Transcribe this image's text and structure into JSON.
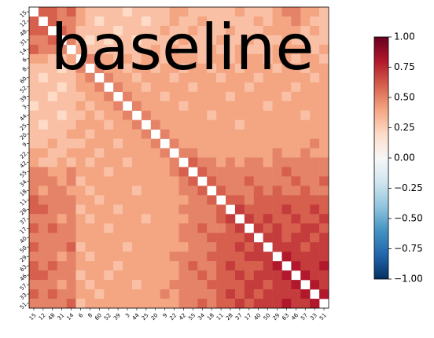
{
  "chart_data": {
    "type": "heatmap",
    "annotation": "baseline",
    "categories": [
      "15",
      "12",
      "48",
      "31",
      "14",
      "6",
      "8",
      "60",
      "52",
      "39",
      "3",
      "44",
      "25",
      "20",
      "9",
      "22",
      "42",
      "55",
      "34",
      "18",
      "11",
      "28",
      "37",
      "17",
      "40",
      "50",
      "29",
      "63",
      "46",
      "57",
      "33",
      "51"
    ],
    "values": [
      [
        null,
        0.6,
        0.6,
        0.5,
        0.6,
        0.4,
        0.3,
        0.3,
        0.3,
        0.3,
        0.2,
        0.3,
        0.3,
        0.3,
        0.3,
        0.4,
        0.4,
        0.3,
        0.3,
        0.3,
        0.3,
        0.3,
        0.4,
        0.3,
        0.3,
        0.3,
        0.4,
        0.5,
        0.5,
        0.4,
        0.4,
        0.3
      ],
      [
        0.6,
        null,
        0.6,
        0.5,
        0.5,
        0.4,
        0.3,
        0.2,
        0.3,
        0.3,
        0.3,
        0.3,
        0.2,
        0.3,
        0.3,
        0.4,
        0.3,
        0.3,
        0.4,
        0.3,
        0.3,
        0.3,
        0.3,
        0.3,
        0.4,
        0.3,
        0.4,
        0.4,
        0.5,
        0.4,
        0.3,
        0.3
      ],
      [
        0.6,
        0.6,
        null,
        0.6,
        0.5,
        0.3,
        0.3,
        0.3,
        0.3,
        0.2,
        0.3,
        0.3,
        0.3,
        0.3,
        0.4,
        0.3,
        0.3,
        0.4,
        0.3,
        0.3,
        0.3,
        0.4,
        0.3,
        0.3,
        0.3,
        0.4,
        0.4,
        0.4,
        0.4,
        0.3,
        0.4,
        0.3
      ],
      [
        0.5,
        0.5,
        0.6,
        null,
        0.5,
        0.3,
        0.2,
        0.3,
        0.2,
        0.3,
        0.3,
        0.2,
        0.3,
        0.3,
        0.3,
        0.3,
        0.4,
        0.3,
        0.3,
        0.3,
        0.4,
        0.3,
        0.3,
        0.4,
        0.3,
        0.3,
        0.3,
        0.4,
        0.3,
        0.3,
        0.3,
        0.3
      ],
      [
        0.6,
        0.5,
        0.5,
        0.5,
        null,
        0.4,
        0.3,
        0.3,
        0.3,
        0.3,
        0.3,
        0.3,
        0.3,
        0.4,
        0.3,
        0.4,
        0.3,
        0.3,
        0.3,
        0.4,
        0.3,
        0.3,
        0.4,
        0.3,
        0.3,
        0.3,
        0.4,
        0.4,
        0.4,
        0.4,
        0.3,
        0.4
      ],
      [
        0.4,
        0.4,
        0.3,
        0.3,
        0.4,
        null,
        0.5,
        0.4,
        0.4,
        0.3,
        0.4,
        0.3,
        0.4,
        0.4,
        0.3,
        0.4,
        0.4,
        0.4,
        0.3,
        0.4,
        0.4,
        0.3,
        0.4,
        0.4,
        0.4,
        0.3,
        0.4,
        0.4,
        0.3,
        0.4,
        0.4,
        0.3
      ],
      [
        0.3,
        0.3,
        0.3,
        0.2,
        0.3,
        0.5,
        null,
        0.5,
        0.4,
        0.4,
        0.3,
        0.4,
        0.4,
        0.3,
        0.4,
        0.4,
        0.3,
        0.4,
        0.4,
        0.3,
        0.4,
        0.4,
        0.3,
        0.4,
        0.4,
        0.4,
        0.3,
        0.4,
        0.4,
        0.3,
        0.4,
        0.4
      ],
      [
        0.3,
        0.2,
        0.3,
        0.3,
        0.3,
        0.4,
        0.5,
        null,
        0.5,
        0.4,
        0.4,
        0.3,
        0.4,
        0.4,
        0.4,
        0.3,
        0.4,
        0.4,
        0.4,
        0.4,
        0.3,
        0.4,
        0.4,
        0.4,
        0.3,
        0.4,
        0.4,
        0.4,
        0.4,
        0.4,
        0.3,
        0.4
      ],
      [
        0.3,
        0.3,
        0.3,
        0.2,
        0.3,
        0.4,
        0.4,
        0.5,
        null,
        0.5,
        0.4,
        0.4,
        0.3,
        0.4,
        0.4,
        0.4,
        0.4,
        0.3,
        0.4,
        0.4,
        0.4,
        0.4,
        0.4,
        0.3,
        0.4,
        0.4,
        0.4,
        0.4,
        0.3,
        0.4,
        0.4,
        0.4
      ],
      [
        0.3,
        0.3,
        0.2,
        0.3,
        0.3,
        0.3,
        0.4,
        0.4,
        0.5,
        null,
        0.5,
        0.4,
        0.4,
        0.4,
        0.3,
        0.4,
        0.4,
        0.4,
        0.4,
        0.4,
        0.4,
        0.3,
        0.4,
        0.4,
        0.4,
        0.4,
        0.4,
        0.3,
        0.4,
        0.4,
        0.4,
        0.4
      ],
      [
        0.2,
        0.3,
        0.3,
        0.3,
        0.3,
        0.4,
        0.3,
        0.4,
        0.4,
        0.5,
        null,
        0.5,
        0.4,
        0.4,
        0.4,
        0.4,
        0.3,
        0.4,
        0.4,
        0.4,
        0.4,
        0.4,
        0.4,
        0.4,
        0.4,
        0.3,
        0.4,
        0.4,
        0.4,
        0.4,
        0.4,
        0.4
      ],
      [
        0.3,
        0.3,
        0.3,
        0.2,
        0.3,
        0.3,
        0.4,
        0.3,
        0.4,
        0.4,
        0.5,
        null,
        0.5,
        0.4,
        0.4,
        0.4,
        0.4,
        0.4,
        0.4,
        0.3,
        0.4,
        0.4,
        0.4,
        0.4,
        0.4,
        0.4,
        0.4,
        0.4,
        0.4,
        0.3,
        0.4,
        0.4
      ],
      [
        0.3,
        0.2,
        0.3,
        0.3,
        0.3,
        0.4,
        0.4,
        0.4,
        0.3,
        0.4,
        0.4,
        0.5,
        null,
        0.5,
        0.4,
        0.4,
        0.4,
        0.4,
        0.4,
        0.4,
        0.4,
        0.4,
        0.3,
        0.4,
        0.4,
        0.4,
        0.4,
        0.4,
        0.4,
        0.4,
        0.4,
        0.4
      ],
      [
        0.3,
        0.3,
        0.3,
        0.3,
        0.4,
        0.4,
        0.3,
        0.4,
        0.4,
        0.4,
        0.4,
        0.4,
        0.5,
        null,
        0.5,
        0.4,
        0.4,
        0.4,
        0.4,
        0.4,
        0.4,
        0.4,
        0.4,
        0.4,
        0.4,
        0.4,
        0.4,
        0.4,
        0.4,
        0.4,
        0.4,
        0.4
      ],
      [
        0.3,
        0.3,
        0.4,
        0.3,
        0.3,
        0.3,
        0.4,
        0.4,
        0.4,
        0.3,
        0.4,
        0.4,
        0.4,
        0.5,
        null,
        0.5,
        0.4,
        0.4,
        0.4,
        0.4,
        0.4,
        0.4,
        0.4,
        0.4,
        0.4,
        0.4,
        0.4,
        0.4,
        0.4,
        0.4,
        0.5,
        0.4
      ],
      [
        0.4,
        0.4,
        0.3,
        0.3,
        0.4,
        0.4,
        0.4,
        0.3,
        0.4,
        0.4,
        0.4,
        0.4,
        0.4,
        0.4,
        0.5,
        null,
        0.5,
        0.5,
        0.4,
        0.4,
        0.4,
        0.4,
        0.4,
        0.4,
        0.4,
        0.4,
        0.5,
        0.4,
        0.4,
        0.5,
        0.4,
        0.4
      ],
      [
        0.4,
        0.3,
        0.3,
        0.4,
        0.3,
        0.4,
        0.3,
        0.4,
        0.4,
        0.4,
        0.3,
        0.4,
        0.4,
        0.4,
        0.4,
        0.5,
        null,
        0.6,
        0.5,
        0.5,
        0.4,
        0.5,
        0.4,
        0.5,
        0.5,
        0.4,
        0.5,
        0.5,
        0.5,
        0.5,
        0.5,
        0.5
      ],
      [
        0.5,
        0.5,
        0.4,
        0.4,
        0.5,
        0.4,
        0.4,
        0.4,
        0.3,
        0.4,
        0.4,
        0.4,
        0.4,
        0.4,
        0.4,
        0.5,
        0.6,
        null,
        0.6,
        0.5,
        0.5,
        0.5,
        0.5,
        0.5,
        0.5,
        0.5,
        0.5,
        0.6,
        0.5,
        0.5,
        0.5,
        0.5
      ],
      [
        0.5,
        0.5,
        0.5,
        0.4,
        0.5,
        0.3,
        0.4,
        0.4,
        0.4,
        0.4,
        0.4,
        0.4,
        0.4,
        0.4,
        0.4,
        0.4,
        0.5,
        0.6,
        null,
        0.6,
        0.5,
        0.5,
        0.5,
        0.6,
        0.5,
        0.5,
        0.5,
        0.5,
        0.6,
        0.5,
        0.5,
        0.6
      ],
      [
        0.5,
        0.4,
        0.5,
        0.5,
        0.4,
        0.4,
        0.3,
        0.4,
        0.4,
        0.4,
        0.4,
        0.3,
        0.4,
        0.4,
        0.4,
        0.4,
        0.5,
        0.5,
        0.6,
        null,
        0.6,
        0.5,
        0.5,
        0.5,
        0.6,
        0.5,
        0.6,
        0.5,
        0.5,
        0.6,
        0.5,
        0.5
      ],
      [
        0.6,
        0.5,
        0.5,
        0.5,
        0.5,
        0.4,
        0.4,
        0.3,
        0.4,
        0.4,
        0.4,
        0.4,
        0.4,
        0.4,
        0.4,
        0.4,
        0.4,
        0.5,
        0.5,
        0.6,
        null,
        0.6,
        0.6,
        0.5,
        0.6,
        0.6,
        0.6,
        0.6,
        0.6,
        0.6,
        0.6,
        0.6
      ],
      [
        0.6,
        0.6,
        0.5,
        0.5,
        0.5,
        0.3,
        0.4,
        0.4,
        0.4,
        0.3,
        0.4,
        0.4,
        0.4,
        0.4,
        0.4,
        0.4,
        0.5,
        0.5,
        0.5,
        0.5,
        0.6,
        null,
        0.7,
        0.6,
        0.6,
        0.6,
        0.6,
        0.7,
        0.6,
        0.6,
        0.7,
        0.6
      ],
      [
        0.5,
        0.5,
        0.5,
        0.4,
        0.5,
        0.4,
        0.3,
        0.4,
        0.4,
        0.4,
        0.4,
        0.4,
        0.3,
        0.4,
        0.4,
        0.4,
        0.4,
        0.5,
        0.5,
        0.5,
        0.6,
        0.7,
        null,
        0.7,
        0.6,
        0.7,
        0.6,
        0.6,
        0.7,
        0.6,
        0.6,
        0.7
      ],
      [
        0.6,
        0.5,
        0.6,
        0.5,
        0.5,
        0.4,
        0.4,
        0.4,
        0.3,
        0.4,
        0.4,
        0.4,
        0.4,
        0.4,
        0.4,
        0.4,
        0.5,
        0.5,
        0.6,
        0.5,
        0.5,
        0.6,
        0.7,
        null,
        0.7,
        0.6,
        0.7,
        0.6,
        0.6,
        0.7,
        0.7,
        0.6
      ],
      [
        0.5,
        0.5,
        0.5,
        0.5,
        0.5,
        0.4,
        0.4,
        0.4,
        0.4,
        0.4,
        0.4,
        0.4,
        0.4,
        0.4,
        0.4,
        0.4,
        0.5,
        0.5,
        0.5,
        0.6,
        0.6,
        0.6,
        0.6,
        0.7,
        null,
        0.7,
        0.7,
        0.6,
        0.7,
        0.7,
        0.6,
        0.7
      ],
      [
        0.6,
        0.5,
        0.5,
        0.5,
        0.6,
        0.3,
        0.4,
        0.4,
        0.4,
        0.4,
        0.3,
        0.4,
        0.4,
        0.4,
        0.4,
        0.4,
        0.4,
        0.5,
        0.5,
        0.5,
        0.6,
        0.6,
        0.7,
        0.6,
        0.7,
        null,
        0.7,
        0.7,
        0.7,
        0.6,
        0.7,
        0.7
      ],
      [
        0.5,
        0.5,
        0.5,
        0.4,
        0.5,
        0.4,
        0.3,
        0.4,
        0.4,
        0.4,
        0.4,
        0.4,
        0.4,
        0.4,
        0.4,
        0.5,
        0.5,
        0.5,
        0.5,
        0.6,
        0.6,
        0.6,
        0.6,
        0.7,
        0.7,
        0.7,
        null,
        0.8,
        0.7,
        0.7,
        0.7,
        0.7
      ],
      [
        0.6,
        0.5,
        0.6,
        0.5,
        0.5,
        0.4,
        0.4,
        0.4,
        0.4,
        0.3,
        0.4,
        0.4,
        0.4,
        0.4,
        0.4,
        0.4,
        0.5,
        0.6,
        0.5,
        0.5,
        0.6,
        0.7,
        0.6,
        0.6,
        0.6,
        0.7,
        0.8,
        null,
        0.8,
        0.7,
        0.7,
        0.8
      ],
      [
        0.6,
        0.6,
        0.5,
        0.5,
        0.5,
        0.3,
        0.4,
        0.4,
        0.3,
        0.4,
        0.4,
        0.4,
        0.4,
        0.4,
        0.4,
        0.4,
        0.5,
        0.5,
        0.6,
        0.5,
        0.6,
        0.6,
        0.7,
        0.6,
        0.7,
        0.7,
        0.7,
        0.8,
        null,
        0.8,
        0.7,
        0.7
      ],
      [
        0.5,
        0.5,
        0.5,
        0.4,
        0.5,
        0.4,
        0.3,
        0.4,
        0.4,
        0.4,
        0.4,
        0.3,
        0.4,
        0.4,
        0.4,
        0.5,
        0.5,
        0.5,
        0.5,
        0.6,
        0.6,
        0.6,
        0.6,
        0.7,
        0.7,
        0.6,
        0.7,
        0.7,
        0.8,
        null,
        0.8,
        0.7
      ],
      [
        0.6,
        0.5,
        0.6,
        0.5,
        0.5,
        0.4,
        0.4,
        0.3,
        0.4,
        0.4,
        0.4,
        0.4,
        0.4,
        0.4,
        0.5,
        0.4,
        0.5,
        0.5,
        0.5,
        0.5,
        0.6,
        0.7,
        0.6,
        0.7,
        0.6,
        0.7,
        0.7,
        0.7,
        0.7,
        0.8,
        null,
        0.8
      ],
      [
        0.5,
        0.5,
        0.5,
        0.5,
        0.6,
        0.3,
        0.4,
        0.4,
        0.4,
        0.4,
        0.4,
        0.4,
        0.4,
        0.4,
        0.4,
        0.4,
        0.5,
        0.5,
        0.6,
        0.5,
        0.6,
        0.6,
        0.7,
        0.6,
        0.7,
        0.7,
        0.7,
        0.8,
        0.7,
        0.7,
        0.8,
        null
      ]
    ],
    "cmap": [
      "#053061",
      "#2166ac",
      "#4393c3",
      "#92c5de",
      "#d1e5f0",
      "#f7f7f7",
      "#fddbc7",
      "#f4a582",
      "#d6604d",
      "#b2182b",
      "#67001f"
    ],
    "clim": [
      -1,
      1
    ],
    "cbar_ticks": [
      {
        "value": -1,
        "label": "−1.00"
      },
      {
        "value": -0.75,
        "label": "−0.75"
      },
      {
        "value": -0.5,
        "label": "−0.50"
      },
      {
        "value": -0.25,
        "label": "−0.25"
      },
      {
        "value": 0,
        "label": "0.00"
      },
      {
        "value": 0.25,
        "label": "0.25"
      },
      {
        "value": 0.5,
        "label": "0.50"
      },
      {
        "value": 0.75,
        "label": "0.75"
      },
      {
        "value": 1,
        "label": "1.00"
      }
    ]
  }
}
